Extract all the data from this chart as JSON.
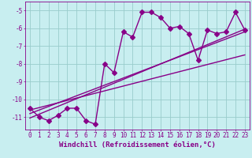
{
  "x_values": [
    0,
    1,
    2,
    3,
    4,
    5,
    6,
    7,
    8,
    9,
    10,
    11,
    12,
    13,
    14,
    15,
    16,
    17,
    18,
    19,
    20,
    21,
    22,
    23
  ],
  "y_main": [
    -10.5,
    -11.0,
    -11.2,
    -10.9,
    -10.5,
    -10.5,
    -11.2,
    -11.4,
    -8.0,
    -8.5,
    -6.2,
    -6.5,
    -5.1,
    -5.1,
    -5.4,
    -6.0,
    -5.9,
    -6.3,
    -7.8,
    -6.1,
    -6.3,
    -6.2,
    -5.1,
    -6.1
  ],
  "line_color": "#880088",
  "bg_color": "#c8eef0",
  "grid_color": "#99cccc",
  "xlabel": "Windchill (Refroidissement éolien,°C)",
  "xlim": [
    -0.5,
    23.5
  ],
  "ylim": [
    -11.7,
    -4.5
  ],
  "yticks": [
    -5,
    -6,
    -7,
    -8,
    -9,
    -10,
    -11
  ],
  "xticks": [
    0,
    1,
    2,
    3,
    4,
    5,
    6,
    7,
    8,
    9,
    10,
    11,
    12,
    13,
    14,
    15,
    16,
    17,
    18,
    19,
    20,
    21,
    22,
    23
  ],
  "markersize": 3,
  "linewidth": 1.0,
  "xlabel_fontsize": 6.5,
  "tick_fontsize": 5.5,
  "reg_lines": [
    [
      0,
      -11.05,
      23,
      -6.05
    ],
    [
      0,
      -10.8,
      23,
      -6.2
    ],
    [
      0,
      -10.6,
      23,
      -7.5
    ]
  ]
}
